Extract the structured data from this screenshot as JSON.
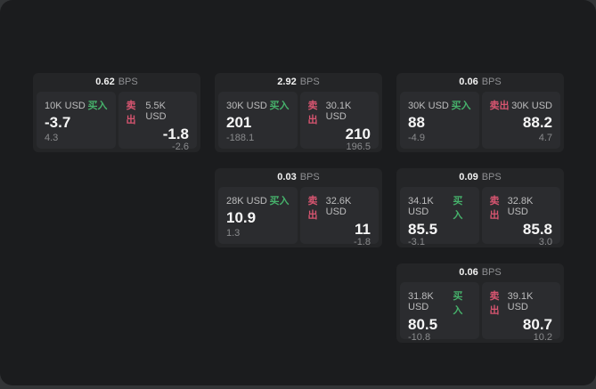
{
  "labels": {
    "bps_unit": "BPS",
    "buy": "买入",
    "sell": "卖出"
  },
  "colors": {
    "panel_bg": "#1b1c1e",
    "card_bg": "#242527",
    "tile_bg": "#2b2c2f",
    "buy_green": "#46b16b",
    "sell_red": "#d75570"
  },
  "cards": [
    {
      "bps": "0.62",
      "buy": {
        "amount": "10K USD",
        "value": "-3.7",
        "delta": "4.3"
      },
      "sell": {
        "amount": "5.5K USD",
        "value": "-1.8",
        "delta": "-2.6"
      }
    },
    {
      "bps": "2.92",
      "buy": {
        "amount": "30K USD",
        "value": "201",
        "delta": "-188.1"
      },
      "sell": {
        "amount": "30.1K USD",
        "value": "210",
        "delta": "196.5"
      }
    },
    {
      "bps": "0.06",
      "buy": {
        "amount": "30K USD",
        "value": "88",
        "delta": "-4.9"
      },
      "sell": {
        "amount": "30K USD",
        "value": "88.2",
        "delta": "4.7"
      }
    },
    {
      "bps": "0.03",
      "buy": {
        "amount": "28K USD",
        "value": "10.9",
        "delta": "1.3"
      },
      "sell": {
        "amount": "32.6K USD",
        "value": "11",
        "delta": "-1.8"
      }
    },
    {
      "bps": "0.09",
      "buy": {
        "amount": "34.1K USD",
        "value": "85.5",
        "delta": "-3.1"
      },
      "sell": {
        "amount": "32.8K USD",
        "value": "85.8",
        "delta": "3.0"
      }
    },
    {
      "bps": "0.06",
      "buy": {
        "amount": "31.8K USD",
        "value": "80.5",
        "delta": "-10.8"
      },
      "sell": {
        "amount": "39.1K USD",
        "value": "80.7",
        "delta": "10.2"
      }
    }
  ]
}
